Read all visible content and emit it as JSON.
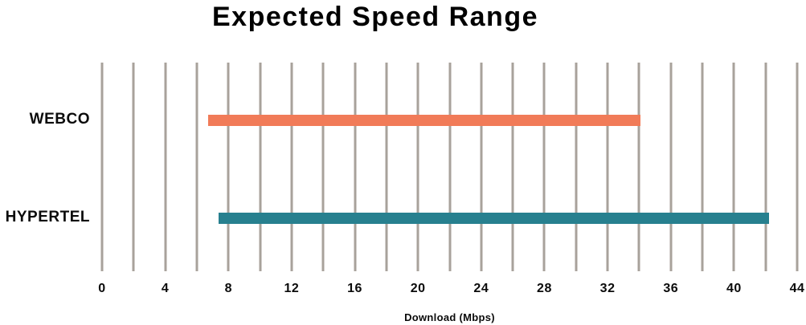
{
  "title": "Expected Speed Range",
  "chart_data": {
    "type": "bar",
    "subtype": "horizontal-range-bar",
    "title": "Expected Speed Range",
    "xlabel": "Download (Mbps)",
    "ylabel": "",
    "categories": [
      "WEBCO",
      "HYPERTEL"
    ],
    "series": [
      {
        "name": "WEBCO",
        "range_mbps": [
          6.7,
          34.1
        ],
        "color": "#f17b58"
      },
      {
        "name": "HYPERTEL",
        "range_mbps": [
          7.4,
          42.2
        ],
        "color": "#27808f"
      }
    ],
    "xlim": [
      0,
      44
    ],
    "xticks": [
      0,
      4,
      8,
      12,
      16,
      20,
      24,
      28,
      32,
      36,
      40,
      44
    ],
    "gridline_step": 2,
    "grid": true,
    "legend": "none",
    "gridline_color": "#a8a29b",
    "text_color": "#0b0b0b",
    "title_color": "#000000"
  }
}
